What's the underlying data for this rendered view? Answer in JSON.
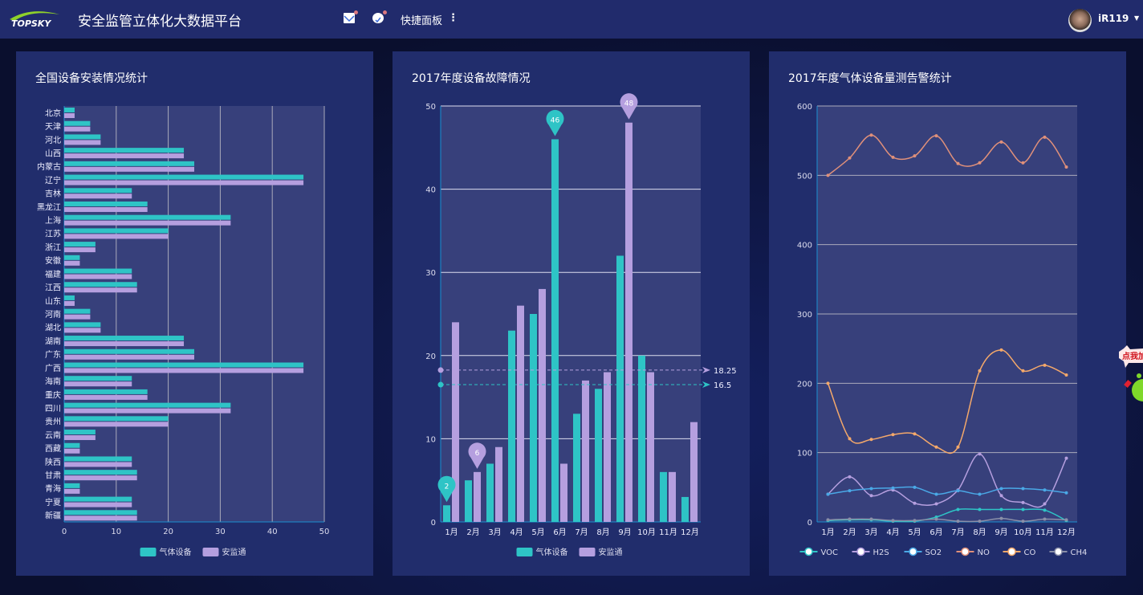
{
  "header": {
    "logo": "TOPSKY",
    "title": "安全监管立体化大数据平台",
    "mail_icon": "mail-icon",
    "check_icon": "check-circle-icon",
    "quick_panel": "快捷面板",
    "username": "iR119",
    "accent": "#212b6c"
  },
  "widget": {
    "text": "点我加"
  },
  "colors": {
    "gas": "#2ec4c6",
    "ajt": "#b59fdf",
    "panel": "#212d6c",
    "plot": "#37407b"
  },
  "panels": [
    {
      "title": "全国设备安装情况统计"
    },
    {
      "title": "2017年度设备故障情况"
    },
    {
      "title": "2017年度气体设备量测告警统计"
    }
  ],
  "chart_data": [
    {
      "type": "bar",
      "orientation": "horizontal",
      "xlim": [
        0,
        50
      ],
      "xticks": [
        0,
        10,
        20,
        30,
        40,
        50
      ],
      "grid": true,
      "legend": "bottom",
      "categories": [
        "北京",
        "天津",
        "河北",
        "山西",
        "内蒙古",
        "辽宁",
        "吉林",
        "黑龙江",
        "上海",
        "江苏",
        "浙江",
        "安徽",
        "福建",
        "江西",
        "山东",
        "河南",
        "湖北",
        "湖南",
        "广东",
        "广西",
        "海南",
        "重庆",
        "四川",
        "贵州",
        "云南",
        "西藏",
        "陕西",
        "甘肃",
        "青海",
        "宁夏",
        "新疆"
      ],
      "series": [
        {
          "name": "气体设备",
          "color": "#2ec4c6",
          "values": [
            2,
            5,
            7,
            23,
            25,
            46,
            13,
            16,
            32,
            20,
            6,
            3,
            13,
            14,
            2,
            5,
            7,
            23,
            25,
            46,
            13,
            16,
            32,
            20,
            6,
            3,
            13,
            14,
            3,
            13,
            14
          ]
        },
        {
          "name": "安监通",
          "color": "#b59fdf",
          "values": [
            2,
            5,
            7,
            23,
            25,
            46,
            13,
            16,
            32,
            20,
            6,
            3,
            13,
            14,
            2,
            5,
            7,
            23,
            25,
            46,
            13,
            16,
            32,
            20,
            6,
            3,
            13,
            14,
            3,
            13,
            14
          ]
        }
      ]
    },
    {
      "type": "bar",
      "ylim": [
        0,
        50
      ],
      "yticks": [
        0,
        10,
        20,
        30,
        40,
        50
      ],
      "grid": true,
      "legend": "bottom",
      "categories": [
        "1月",
        "2月",
        "3月",
        "4月",
        "5月",
        "6月",
        "7月",
        "8月",
        "9月",
        "10月",
        "11月",
        "12月"
      ],
      "series": [
        {
          "name": "气体设备",
          "color": "#2ec4c6",
          "values": [
            2,
            5,
            7,
            23,
            25,
            46,
            13,
            16,
            32,
            20,
            6,
            3
          ],
          "max": 46,
          "min": 2,
          "mean": 16.5
        },
        {
          "name": "安监通",
          "color": "#b59fdf",
          "values": [
            24,
            6,
            9,
            26,
            28,
            7,
            17,
            18,
            48,
            18,
            6,
            12
          ],
          "max": 48,
          "min": 6,
          "mean": 18.25
        }
      ]
    },
    {
      "type": "line",
      "smooth": true,
      "ylim": [
        0,
        600
      ],
      "yticks": [
        0,
        100,
        200,
        300,
        400,
        500,
        600
      ],
      "grid": true,
      "legend": "bottom",
      "categories": [
        "1月",
        "2月",
        "3月",
        "4月",
        "5月",
        "6月",
        "7月",
        "8月",
        "9月",
        "10月",
        "11月",
        "12月"
      ],
      "series": [
        {
          "name": "VOC",
          "color": "#2ec4c6",
          "values": [
            2,
            3,
            3,
            1,
            1,
            7,
            18,
            18,
            18,
            18,
            17,
            2
          ]
        },
        {
          "name": "H2S",
          "color": "#b59fdf",
          "values": [
            40,
            65,
            38,
            46,
            27,
            26,
            46,
            98,
            38,
            28,
            26,
            92
          ]
        },
        {
          "name": "SO2",
          "color": "#4aa8e6",
          "values": [
            40,
            45,
            48,
            49,
            50,
            40,
            45,
            40,
            48,
            48,
            46,
            42
          ]
        },
        {
          "name": "NO",
          "color": "#e0907a",
          "values": [
            500,
            525,
            558,
            526,
            528,
            557,
            517,
            518,
            548,
            518,
            555,
            512
          ]
        },
        {
          "name": "CO",
          "color": "#f4a86a",
          "values": [
            200,
            120,
            119,
            126,
            127,
            108,
            108,
            218,
            248,
            218,
            226,
            212
          ]
        },
        {
          "name": "CH4",
          "color": "#8a8fa8",
          "values": [
            3,
            4,
            4,
            2,
            2,
            4,
            1,
            1,
            5,
            1,
            4,
            3
          ]
        }
      ]
    }
  ]
}
